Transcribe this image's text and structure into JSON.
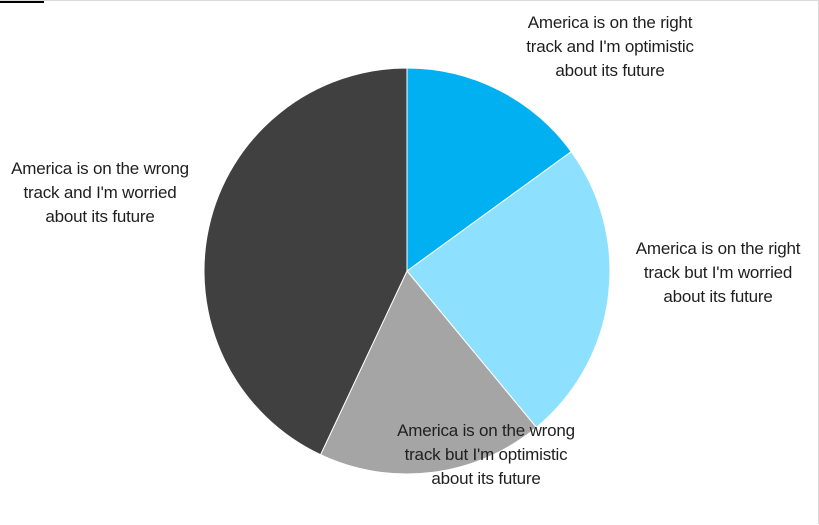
{
  "chart_data": {
    "type": "pie",
    "title": "",
    "start_angle_deg": 0,
    "direction": "clockwise",
    "slices": [
      {
        "label": "America is on the right track and I'm optimistic about its future",
        "value": 15,
        "color": "#00b0f0"
      },
      {
        "label": "America is on the right track but I'm worried about its future",
        "value": 24,
        "color": "#8ee0ff"
      },
      {
        "label": "America is on the wrong track but I'm optimistic about its future",
        "value": 18,
        "color": "#a5a5a5"
      },
      {
        "label": "America is on the wrong track and I'm worried about its future",
        "value": 43,
        "color": "#404040"
      }
    ],
    "legend": "none",
    "data_labels": "category names outside slices"
  }
}
